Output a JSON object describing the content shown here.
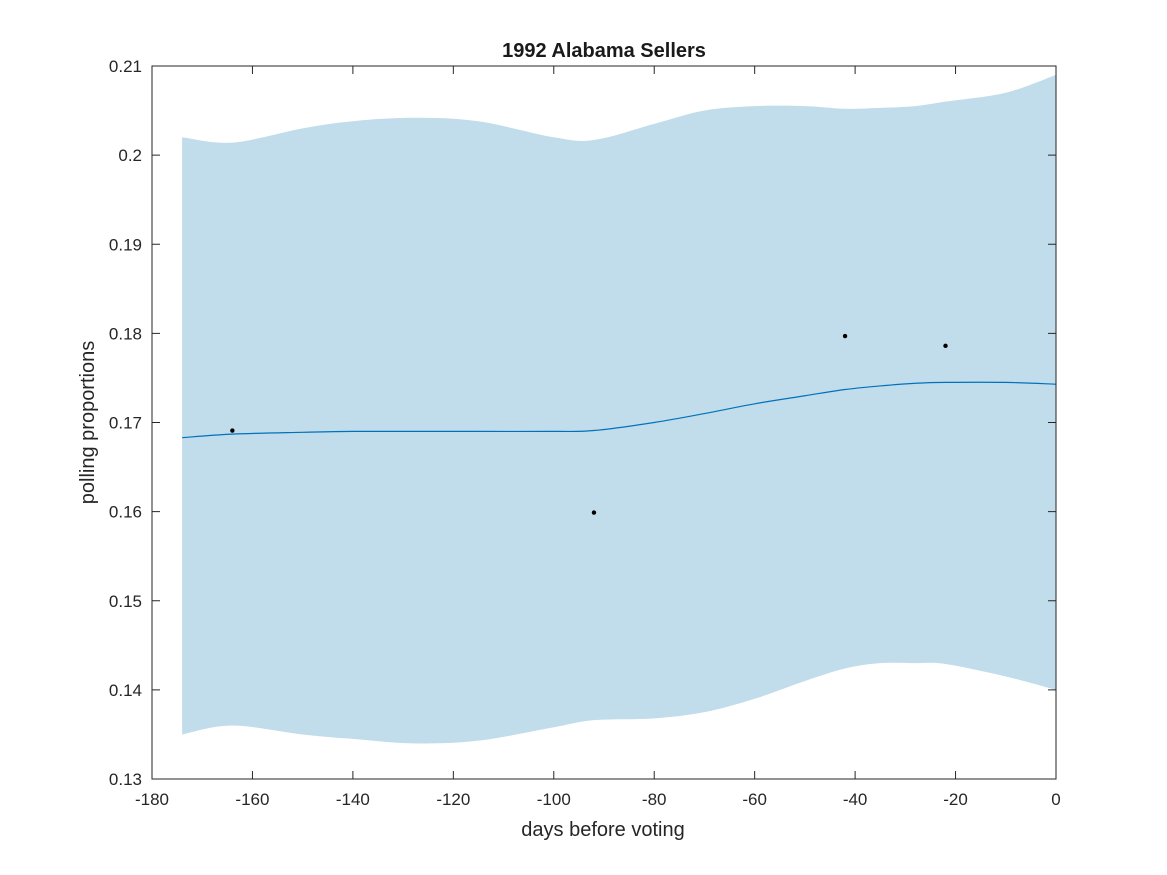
{
  "chart_data": {
    "type": "line",
    "title": "1992 Alabama Sellers",
    "xlabel": "days before voting",
    "ylabel": "polling proportions",
    "xlim": [
      -180,
      0
    ],
    "ylim": [
      0.13,
      0.21
    ],
    "x_ticks": [
      -180,
      -160,
      -140,
      -120,
      -100,
      -80,
      -60,
      -40,
      -20,
      0
    ],
    "x_tick_labels": [
      "-180",
      "-160",
      "-140",
      "-120",
      "-100",
      "-80",
      "-60",
      "-40",
      "-20",
      "0"
    ],
    "y_ticks": [
      0.13,
      0.14,
      0.15,
      0.16,
      0.17,
      0.18,
      0.19,
      0.2,
      0.21
    ],
    "y_tick_labels": [
      "0.13",
      "0.14",
      "0.15",
      "0.16",
      "0.17",
      "0.18",
      "0.19",
      "0.2",
      "0.21"
    ],
    "grid": false,
    "colors": {
      "band": "#c1dcea",
      "line": "#0072bd",
      "points": "#000000",
      "axes": "#262626"
    },
    "band": {
      "x": [
        -174,
        -164,
        -150,
        -140,
        -128,
        -115,
        -100,
        -92,
        -80,
        -70,
        -60,
        -50,
        -42,
        -35,
        -28,
        -22,
        -10,
        0
      ],
      "upper": [
        0.202,
        0.2014,
        0.203,
        0.2038,
        0.2042,
        0.2038,
        0.202,
        0.2017,
        0.2035,
        0.205,
        0.2055,
        0.2055,
        0.2052,
        0.2053,
        0.2055,
        0.206,
        0.207,
        0.209
      ],
      "lower": [
        0.135,
        0.136,
        0.135,
        0.1345,
        0.134,
        0.1343,
        0.1358,
        0.1366,
        0.1368,
        0.1375,
        0.139,
        0.141,
        0.1424,
        0.143,
        0.143,
        0.1429,
        0.1415,
        0.14
      ]
    },
    "series": [
      {
        "x": [
          -174,
          -164,
          -150,
          -140,
          -128,
          -115,
          -100,
          -92,
          -80,
          -70,
          -60,
          -50,
          -42,
          -35,
          -28,
          -22,
          -10,
          0
        ],
        "values": [
          0.1683,
          0.1687,
          0.1689,
          0.169,
          0.169,
          0.169,
          0.169,
          0.1691,
          0.17,
          0.171,
          0.1721,
          0.173,
          0.1737,
          0.1741,
          0.1744,
          0.1745,
          0.1745,
          0.1743
        ]
      }
    ],
    "points": [
      {
        "x": -164,
        "y": 0.1691
      },
      {
        "x": -92,
        "y": 0.1599
      },
      {
        "x": -42,
        "y": 0.1797
      },
      {
        "x": -22,
        "y": 0.1786
      }
    ]
  }
}
